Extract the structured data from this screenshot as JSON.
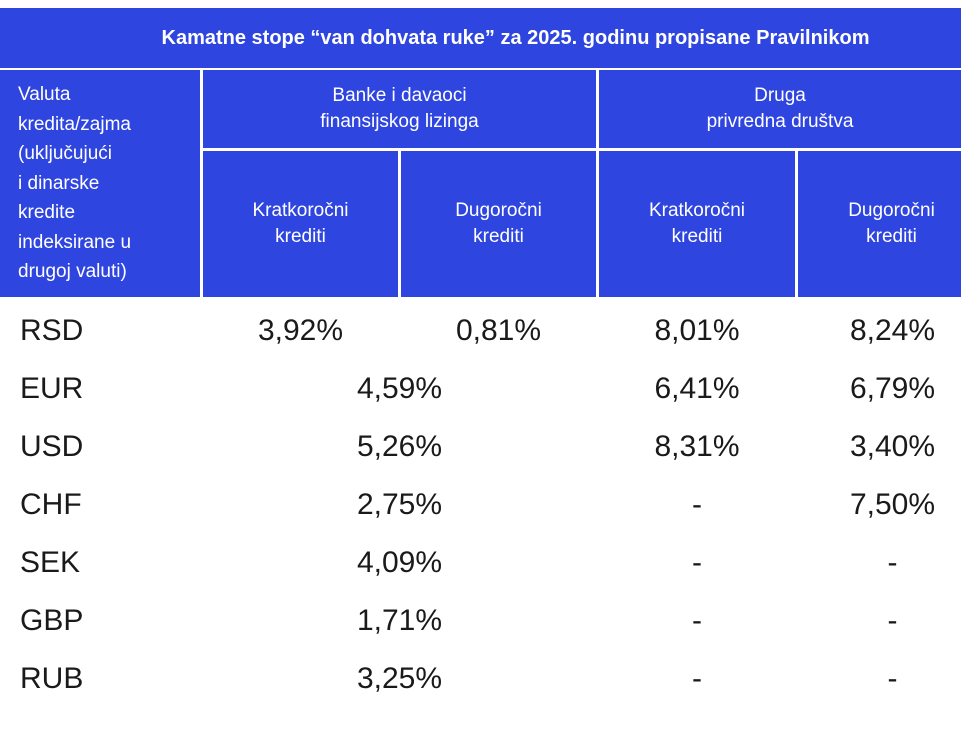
{
  "header": {
    "title": "Kamatne stope “van dohvata ruke” za 2025. godinu propisane Pravilnikom"
  },
  "table": {
    "corner": "Valuta\nkredita/zajma\n(uključujući\ni dinarske\nkredite\nindeksirane u\ndrugoj valuti)",
    "groups": [
      "Banke i davaoci\nfinansijskog lizinga",
      "Druga\nprivredna društva"
    ],
    "columns": [
      "Kratkoročni\nkrediti",
      "Dugoročni\nkrediti",
      "Kratkoročni\nkrediti",
      "Dugoročni\nkrediti"
    ],
    "rows": [
      {
        "currency": "RSD",
        "cells": [
          "3,92%",
          "0,81%",
          "8,01%",
          "8,24%"
        ]
      },
      {
        "currency": "EUR",
        "cells": [
          "4,59%",
          "6,41%",
          "6,79%"
        ]
      },
      {
        "currency": "USD",
        "cells": [
          "5,26%",
          "8,31%",
          "3,40%"
        ]
      },
      {
        "currency": "CHF",
        "cells": [
          "2,75%",
          "-",
          "7,50%"
        ]
      },
      {
        "currency": "SEK",
        "cells": [
          "4,09%",
          "-",
          "-"
        ]
      },
      {
        "currency": "GBP",
        "cells": [
          "1,71%",
          "-",
          "-"
        ]
      },
      {
        "currency": "RUB",
        "cells": [
          "3,25%",
          "-",
          "-"
        ]
      }
    ]
  }
}
